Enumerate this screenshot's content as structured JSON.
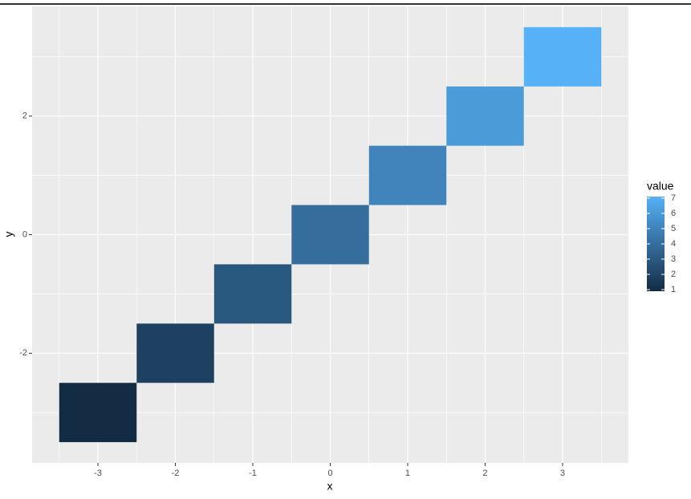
{
  "chart_data": {
    "type": "heatmap",
    "x": [
      -3,
      -2,
      -1,
      0,
      1,
      2,
      3
    ],
    "y": [
      -3,
      -2,
      -1,
      0,
      1,
      2,
      3
    ],
    "values": [
      1,
      2,
      3,
      4,
      5,
      6,
      7
    ],
    "colormap": [
      "#132B43",
      "#56B1F7"
    ],
    "xlabel": "x",
    "ylabel": "y",
    "xlim": [
      -3.85,
      3.85
    ],
    "ylim": [
      -3.85,
      3.85
    ],
    "xticks": [
      -3,
      -2,
      -1,
      0,
      1,
      2,
      3
    ],
    "yticks": [
      -2,
      0,
      2
    ],
    "grid": true,
    "legend_title": "value",
    "clim": [
      1,
      7
    ],
    "cticks": [
      1,
      2,
      3,
      4,
      5,
      6,
      7
    ]
  }
}
